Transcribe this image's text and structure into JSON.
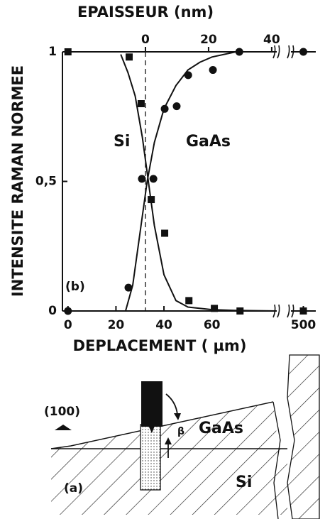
{
  "chart_data": {
    "type": "scatter",
    "x_title": "DEPLACEMENT ( µm)",
    "x2_title": "EPAISSEUR (nm)",
    "y_title": "INTENSITE RAMAN NORMEE",
    "annotation": "(b)",
    "xlim": [
      -2.3,
      503
    ],
    "xbreak": [
      87,
      497
    ],
    "xticks": [
      0,
      20,
      40,
      60,
      500
    ],
    "x2lim": [
      -26.3,
      41.6
    ],
    "x2ticks": [
      0,
      20,
      40
    ],
    "ylim": [
      0,
      1
    ],
    "yticks": [
      0,
      {
        "value": 0.5,
        "label": "0,5"
      },
      1
    ],
    "series": [
      {
        "name": "Si",
        "marker": "square",
        "color": "#111",
        "x": [
          0,
          25.5,
          30.5,
          34.7,
          40.3,
          50.4,
          61,
          71.7,
          500
        ],
        "values": [
          1,
          0.98,
          0.8,
          0.43,
          0.3,
          0.04,
          0.01,
          0.0,
          0
        ]
      },
      {
        "name": "GaAs",
        "marker": "circle",
        "color": "#111",
        "x": [
          0,
          25.2,
          30.8,
          35.6,
          40.3,
          45.3,
          50.1,
          60.4,
          71.4,
          500
        ],
        "values": [
          0,
          0.09,
          0.51,
          0.51,
          0.78,
          0.79,
          0.91,
          0.93,
          1,
          1
        ]
      }
    ],
    "curves": [
      {
        "color": "#111",
        "x": [
          22,
          25,
          28,
          31,
          33.5,
          36,
          40,
          45,
          50,
          60,
          70,
          87
        ],
        "values": [
          0.99,
          0.92,
          0.83,
          0.67,
          0.5,
          0.33,
          0.14,
          0.04,
          0.015,
          0.005,
          0.002,
          0
        ]
      },
      {
        "color": "#111",
        "x": [
          24,
          27,
          30,
          33,
          36,
          40,
          45,
          50,
          55,
          60,
          70,
          87
        ],
        "values": [
          0,
          0.1,
          0.3,
          0.5,
          0.65,
          0.78,
          0.87,
          0.93,
          0.96,
          0.98,
          1,
          1
        ]
      }
    ]
  },
  "diagram": {
    "label": "(a)",
    "orientation": "(100)",
    "angle": "β",
    "layers": [
      "GaAs",
      "Si"
    ]
  }
}
